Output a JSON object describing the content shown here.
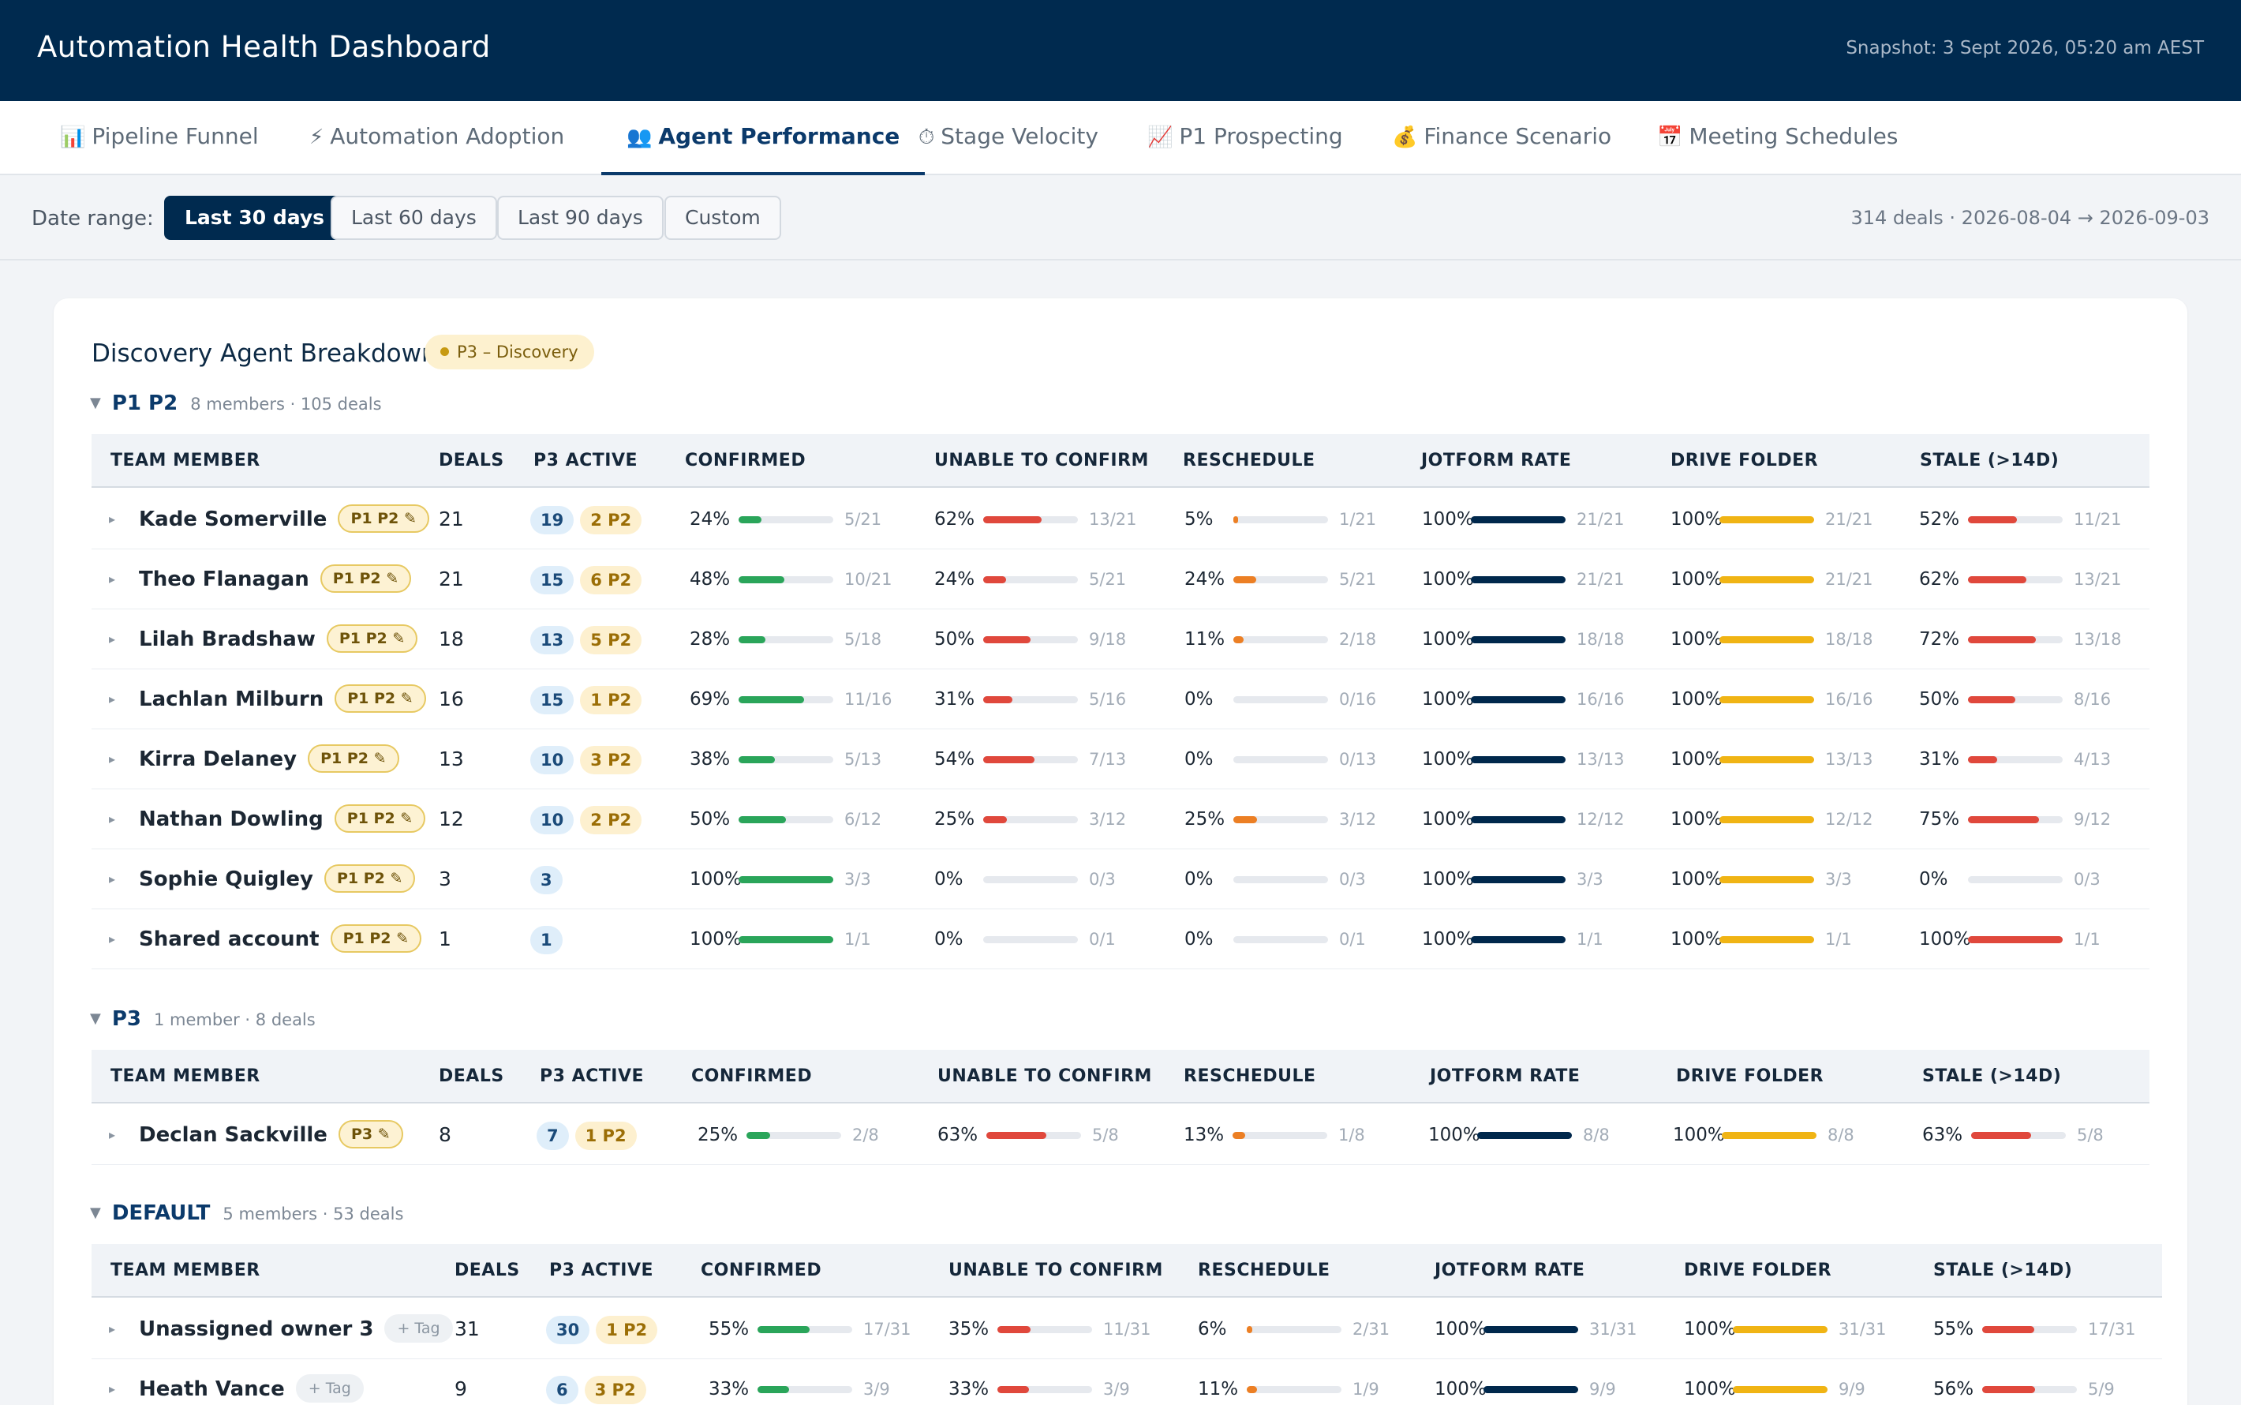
{
  "header": {
    "title": "Automation Health Dashboard",
    "snapshot": "Snapshot: 3 Sept 2026, 05:20 am AEST"
  },
  "tabs": [
    {
      "icon": "📊",
      "icon_name": "bar-chart-icon",
      "label": "Pipeline Funnel"
    },
    {
      "icon": "⚡",
      "icon_name": "lightning-icon",
      "label": "Automation Adoption"
    },
    {
      "icon": "👥",
      "icon_name": "people-icon",
      "label": "Agent Performance",
      "active": true
    },
    {
      "icon": "⏱",
      "icon_name": "stopwatch-icon",
      "label": "Stage Velocity"
    },
    {
      "icon": "📈",
      "icon_name": "trend-up-icon",
      "label": "P1 Prospecting"
    },
    {
      "icon": "💰",
      "icon_name": "money-bag-icon",
      "label": "Finance Scenario"
    },
    {
      "icon": "📅",
      "icon_name": "calendar-icon",
      "label": "Meeting Schedules"
    }
  ],
  "filters": {
    "label": "Date range:",
    "options": [
      "Last 30 days",
      "Last 60 days",
      "Last 90 days",
      "Custom"
    ],
    "selected": "Last 30 days",
    "summary": "314 deals · 2026-08-04 → 2026-09-03"
  },
  "card": {
    "title": "Discovery Agent Breakdown",
    "phase": "P3 – Discovery"
  },
  "columns": [
    "TEAM MEMBER",
    "DEALS",
    "P3 ACTIVE",
    "CONFIRMED",
    "UNABLE TO CONFIRM",
    "RESCHEDULE",
    "JOTFORM RATE",
    "DRIVE FOLDER",
    "STALE (>14D)"
  ],
  "colors": {
    "confirmed": "#2aa55a",
    "unable": "#e0483c",
    "reschedule": "#ec7f24",
    "jotform": "#00284c",
    "drive": "#f0b414",
    "stale": "#e0483c",
    "header": "#002a4f"
  },
  "groups": [
    {
      "name": "P1 P2",
      "meta": "8 members · 105 deals",
      "rows": [
        {
          "name": "Kade Somerville",
          "tag": "P1 P2 ✎",
          "deals": "21",
          "p3": "19",
          "p2": "2 P2",
          "confirmed": [
            "24%",
            "5/21"
          ],
          "unable": [
            "62%",
            "13/21"
          ],
          "reschedule": [
            "5%",
            "1/21"
          ],
          "jotform": [
            "100%",
            "21/21"
          ],
          "drive": [
            "100%",
            "21/21"
          ],
          "stale": [
            "52%",
            "11/21"
          ]
        },
        {
          "name": "Theo Flanagan",
          "tag": "P1 P2 ✎",
          "deals": "21",
          "p3": "15",
          "p2": "6 P2",
          "confirmed": [
            "48%",
            "10/21"
          ],
          "unable": [
            "24%",
            "5/21"
          ],
          "reschedule": [
            "24%",
            "5/21"
          ],
          "jotform": [
            "100%",
            "21/21"
          ],
          "drive": [
            "100%",
            "21/21"
          ],
          "stale": [
            "62%",
            "13/21"
          ]
        },
        {
          "name": "Lilah Bradshaw",
          "tag": "P1 P2 ✎",
          "deals": "18",
          "p3": "13",
          "p2": "5 P2",
          "confirmed": [
            "28%",
            "5/18"
          ],
          "unable": [
            "50%",
            "9/18"
          ],
          "reschedule": [
            "11%",
            "2/18"
          ],
          "jotform": [
            "100%",
            "18/18"
          ],
          "drive": [
            "100%",
            "18/18"
          ],
          "stale": [
            "72%",
            "13/18"
          ]
        },
        {
          "name": "Lachlan Milburn",
          "tag": "P1 P2 ✎",
          "deals": "16",
          "p3": "15",
          "p2": "1 P2",
          "confirmed": [
            "69%",
            "11/16"
          ],
          "unable": [
            "31%",
            "5/16"
          ],
          "reschedule": [
            "0%",
            "0/16"
          ],
          "jotform": [
            "100%",
            "16/16"
          ],
          "drive": [
            "100%",
            "16/16"
          ],
          "stale": [
            "50%",
            "8/16"
          ]
        },
        {
          "name": "Kirra Delaney",
          "tag": "P1 P2 ✎",
          "deals": "13",
          "p3": "10",
          "p2": "3 P2",
          "confirmed": [
            "38%",
            "5/13"
          ],
          "unable": [
            "54%",
            "7/13"
          ],
          "reschedule": [
            "0%",
            "0/13"
          ],
          "jotform": [
            "100%",
            "13/13"
          ],
          "drive": [
            "100%",
            "13/13"
          ],
          "stale": [
            "31%",
            "4/13"
          ]
        },
        {
          "name": "Nathan Dowling",
          "tag": "P1 P2 ✎",
          "deals": "12",
          "p3": "10",
          "p2": "2 P2",
          "confirmed": [
            "50%",
            "6/12"
          ],
          "unable": [
            "25%",
            "3/12"
          ],
          "reschedule": [
            "25%",
            "3/12"
          ],
          "jotform": [
            "100%",
            "12/12"
          ],
          "drive": [
            "100%",
            "12/12"
          ],
          "stale": [
            "75%",
            "9/12"
          ]
        },
        {
          "name": "Sophie Quigley",
          "tag": "P1 P2 ✎",
          "deals": "3",
          "p3": "3",
          "p2": "",
          "confirmed": [
            "100%",
            "3/3"
          ],
          "unable": [
            "0%",
            "0/3"
          ],
          "reschedule": [
            "0%",
            "0/3"
          ],
          "jotform": [
            "100%",
            "3/3"
          ],
          "drive": [
            "100%",
            "3/3"
          ],
          "stale": [
            "0%",
            "0/3"
          ]
        },
        {
          "name": "Shared account",
          "tag": "P1 P2 ✎",
          "deals": "1",
          "p3": "1",
          "p2": "",
          "confirmed": [
            "100%",
            "1/1"
          ],
          "unable": [
            "0%",
            "0/1"
          ],
          "reschedule": [
            "0%",
            "0/1"
          ],
          "jotform": [
            "100%",
            "1/1"
          ],
          "drive": [
            "100%",
            "1/1"
          ],
          "stale": [
            "100%",
            "1/1"
          ]
        }
      ]
    },
    {
      "name": "P3",
      "meta": "1 member · 8 deals",
      "rows": [
        {
          "name": "Declan Sackville",
          "tag": "P3 ✎",
          "deals": "8",
          "p3": "7",
          "p2": "1 P2",
          "confirmed": [
            "25%",
            "2/8"
          ],
          "unable": [
            "63%",
            "5/8"
          ],
          "reschedule": [
            "13%",
            "1/8"
          ],
          "jotform": [
            "100%",
            "8/8"
          ],
          "drive": [
            "100%",
            "8/8"
          ],
          "stale": [
            "63%",
            "5/8"
          ]
        }
      ]
    },
    {
      "name": "DEFAULT",
      "meta": "5 members · 53 deals",
      "rows": [
        {
          "name": "Unassigned owner 3",
          "tag": "+ Tag",
          "tag_empty": true,
          "deals": "31",
          "p3": "30",
          "p2": "1 P2",
          "confirmed": [
            "55%",
            "17/31"
          ],
          "unable": [
            "35%",
            "11/31"
          ],
          "reschedule": [
            "6%",
            "2/31"
          ],
          "jotform": [
            "100%",
            "31/31"
          ],
          "drive": [
            "100%",
            "31/31"
          ],
          "stale": [
            "55%",
            "17/31"
          ]
        },
        {
          "name": "Heath Vance",
          "tag": "+ Tag",
          "tag_empty": true,
          "deals": "9",
          "p3": "6",
          "p2": "3 P2",
          "confirmed": [
            "33%",
            "3/9"
          ],
          "unable": [
            "33%",
            "3/9"
          ],
          "reschedule": [
            "11%",
            "1/9"
          ],
          "jotform": [
            "100%",
            "9/9"
          ],
          "drive": [
            "100%",
            "9/9"
          ],
          "stale": [
            "56%",
            "5/9"
          ]
        }
      ]
    }
  ]
}
